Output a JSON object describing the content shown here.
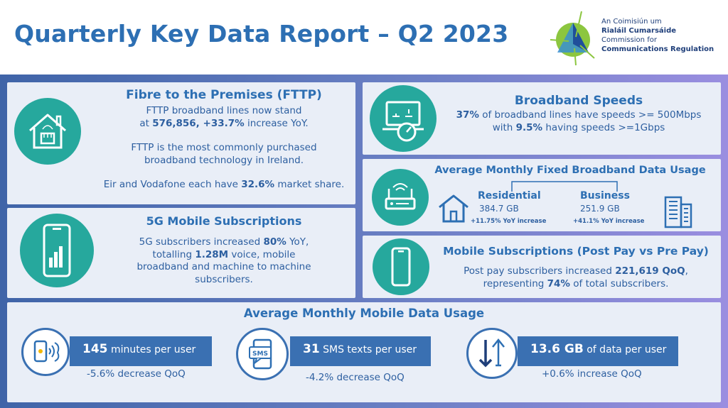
{
  "header": {
    "title": "Quarterly Key Data Report – Q2 2023",
    "logo_line1": "An Coimisiún um",
    "logo_line2": "Rialáil Cumarsáide",
    "logo_line3": "Commission for",
    "logo_line4": "Communications Regulation"
  },
  "fttp": {
    "title": "Fibre to the Premises (FTTP)",
    "line1": "FTTP broadband lines now stand",
    "line2_prefix": "at ",
    "line2_value": "576,856, +33.7%",
    "line2_suffix": " increase YoY.",
    "line3": "FTTP is the most commonly purchased",
    "line4": "broadband technology in Ireland.",
    "line5_prefix": "Eir and Vodafone each have ",
    "line5_value": "32.6%",
    "line5_suffix": " market share."
  },
  "fiveg": {
    "title": "5G Mobile Subscriptions",
    "line1_prefix": "5G subscribers increased ",
    "line1_value": "80%",
    "line1_suffix": " YoY,",
    "line2_prefix": "totalling ",
    "line2_value": "1.28M",
    "line2_suffix": " voice, mobile",
    "line3": "broadband and machine to machine",
    "line4": "subscribers."
  },
  "speeds": {
    "title": "Broadband Speeds",
    "line1_value": "37%",
    "line1_suffix": " of broadband lines have speeds >= 500Mbps",
    "line2_prefix": "with ",
    "line2_value": "9.5%",
    "line2_suffix": " having speeds >=1Gbps"
  },
  "usage": {
    "title": "Average Monthly Fixed Broadband Data Usage",
    "residential_label": "Residential",
    "residential_value": "384.7 GB",
    "residential_change": "+11.75% YoY increase",
    "business_label": "Business",
    "business_value": "251.9 GB",
    "business_change": "+41.1% YoY increase"
  },
  "mobile_subs": {
    "title": "Mobile Subscriptions (Post Pay vs Pre Pay)",
    "line1_prefix": "Post pay subscribers increased ",
    "line1_value": "221,619 QoQ",
    "line1_suffix": ",",
    "line2_prefix": "representing ",
    "line2_value": "74%",
    "line2_suffix": " of total subscribers."
  },
  "mobile_usage": {
    "title": "Average Monthly Mobile Data Usage",
    "stats": [
      {
        "value": "145",
        "unit": " minutes per user",
        "change": "-5.6% decrease QoQ"
      },
      {
        "value": "31",
        "unit": " SMS texts per user",
        "change": "-4.2% decrease QoQ"
      },
      {
        "value": "13.6 GB",
        "unit": " of data per user",
        "change": "+0.6% increase QoQ"
      }
    ],
    "sms_icon_label": "SMS"
  },
  "colors": {
    "title_blue": "#2d6fb3",
    "teal": "#26a89d",
    "panel_bg": "#e9eef7",
    "stat_bar": "#3a70b2"
  },
  "icons": [
    "house-router-icon",
    "smartphone-signal-icon",
    "laptop-speed-icon",
    "router-icon",
    "house-icon",
    "office-building-icon",
    "smartphone-icon",
    "phone-call-icon",
    "sms-icon",
    "data-transfer-icon",
    "comreg-logo"
  ]
}
